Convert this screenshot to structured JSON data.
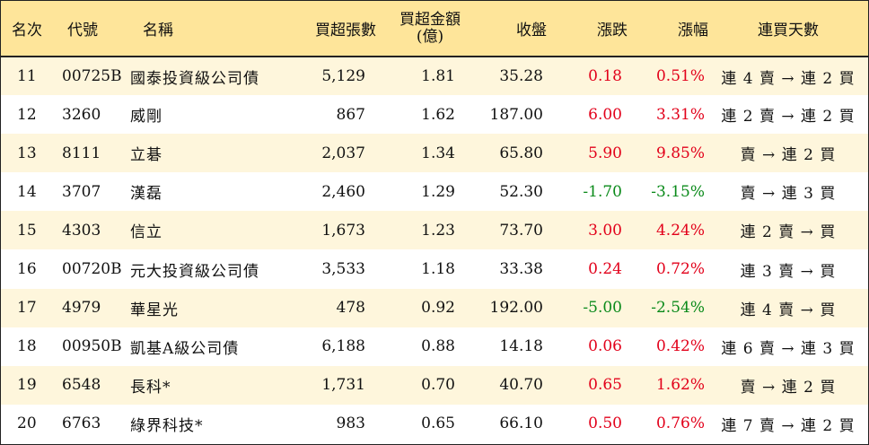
{
  "header": {
    "rank": "名次",
    "code": "代號",
    "name": "名稱",
    "net_buy_lots": "買超張數",
    "net_buy_amount_line1": "買超金額",
    "net_buy_amount_line2": "(億)",
    "close": "收盤",
    "change": "漲跌",
    "change_pct": "漲幅",
    "consecutive_days": "連買天數"
  },
  "colors": {
    "header_bg": "#fee59a",
    "odd_row_bg": "#fef6dc",
    "up": "#e2001a",
    "down": "#0a8a1a"
  },
  "rows": [
    {
      "rank": "11",
      "code": "00725B",
      "name": "國泰投資級公司債",
      "lots": "5,129",
      "amount": "1.81",
      "close": "35.28",
      "change": "0.18",
      "change_pct": "0.51%",
      "dir": "up",
      "days": "連 4 賣 → 連 2 買"
    },
    {
      "rank": "12",
      "code": "3260",
      "name": "威剛",
      "lots": "867",
      "amount": "1.62",
      "close": "187.00",
      "change": "6.00",
      "change_pct": "3.31%",
      "dir": "up",
      "days": "連 2 賣 → 連 2 買"
    },
    {
      "rank": "13",
      "code": "8111",
      "name": "立碁",
      "lots": "2,037",
      "amount": "1.34",
      "close": "65.80",
      "change": "5.90",
      "change_pct": "9.85%",
      "dir": "up",
      "days": "賣 → 連 2 買"
    },
    {
      "rank": "14",
      "code": "3707",
      "name": "漢磊",
      "lots": "2,460",
      "amount": "1.29",
      "close": "52.30",
      "change": "-1.70",
      "change_pct": "-3.15%",
      "dir": "down",
      "days": "賣 → 連 3 買"
    },
    {
      "rank": "15",
      "code": "4303",
      "name": "信立",
      "lots": "1,673",
      "amount": "1.23",
      "close": "73.70",
      "change": "3.00",
      "change_pct": "4.24%",
      "dir": "up",
      "days": "連 2 賣 → 買"
    },
    {
      "rank": "16",
      "code": "00720B",
      "name": "元大投資級公司債",
      "lots": "3,533",
      "amount": "1.18",
      "close": "33.38",
      "change": "0.24",
      "change_pct": "0.72%",
      "dir": "up",
      "days": "連 3 賣 → 買"
    },
    {
      "rank": "17",
      "code": "4979",
      "name": "華星光",
      "lots": "478",
      "amount": "0.92",
      "close": "192.00",
      "change": "-5.00",
      "change_pct": "-2.54%",
      "dir": "down",
      "days": "連 4 賣 → 買"
    },
    {
      "rank": "18",
      "code": "00950B",
      "name": "凱基A級公司債",
      "lots": "6,188",
      "amount": "0.88",
      "close": "14.18",
      "change": "0.06",
      "change_pct": "0.42%",
      "dir": "up",
      "days": "連 6 賣 → 連 3 買"
    },
    {
      "rank": "19",
      "code": "6548",
      "name": "長科*",
      "lots": "1,731",
      "amount": "0.70",
      "close": "40.70",
      "change": "0.65",
      "change_pct": "1.62%",
      "dir": "up",
      "days": "賣 → 連 2 買"
    },
    {
      "rank": "20",
      "code": "6763",
      "name": "綠界科技*",
      "lots": "983",
      "amount": "0.65",
      "close": "66.10",
      "change": "0.50",
      "change_pct": "0.76%",
      "dir": "up",
      "days": "連 7 賣 → 連 2 買"
    }
  ]
}
